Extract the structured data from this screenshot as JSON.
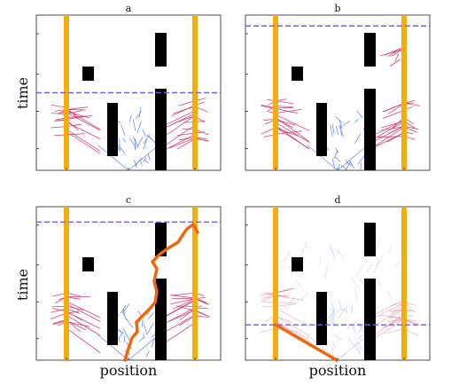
{
  "panels": [
    {
      "letter": "a",
      "time_line": 0.5,
      "highlight": null
    },
    {
      "letter": "b",
      "time_line": 0.93,
      "highlight": null
    },
    {
      "letter": "c",
      "time_line": 0.9,
      "highlight": "path"
    },
    {
      "letter": "d",
      "time_line": 0.23,
      "highlight": "ray"
    }
  ],
  "ylabel": "time",
  "xlabel": "position",
  "colors": {
    "wall": "#f5ad0c",
    "obstacle": "#000000",
    "time_line": "#6b63e0",
    "path": "#f0660f",
    "trace_pink": "#d0306e",
    "trace_blue": "#5b86e6"
  }
}
